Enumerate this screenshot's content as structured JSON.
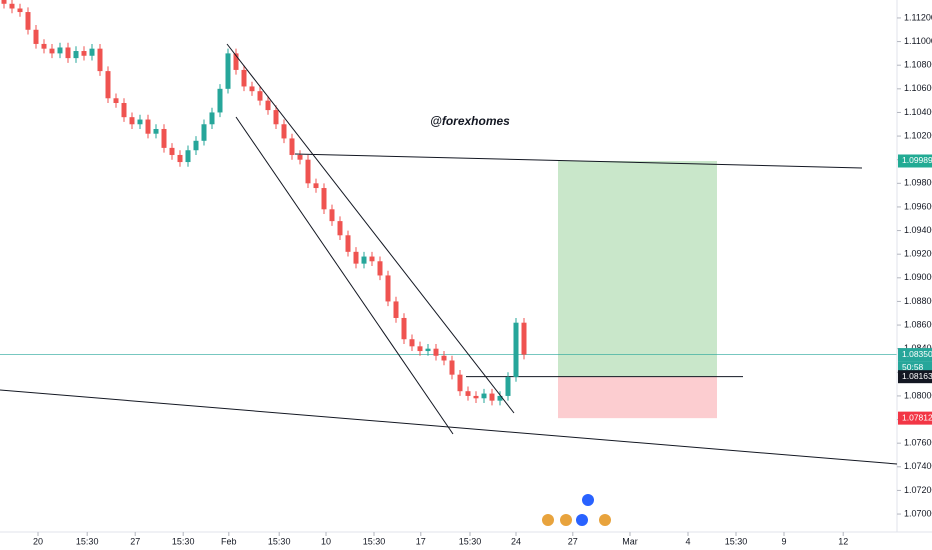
{
  "chart_data": {
    "type": "candlestick",
    "watermark": "@forexhomes",
    "ylim": [
      1.06848,
      1.11352
    ],
    "xlim": [
      0,
      112
    ],
    "yticks": [
      {
        "value": 1.07,
        "label": "1.07000"
      },
      {
        "value": 1.072,
        "label": "1.07200"
      },
      {
        "value": 1.074,
        "label": "1.07400"
      },
      {
        "value": 1.076,
        "label": "1.07600"
      },
      {
        "value": 1.078,
        "label": "1.07800"
      },
      {
        "value": 1.08,
        "label": "1.08000"
      },
      {
        "value": 1.082,
        "label": "1.08200"
      },
      {
        "value": 1.084,
        "label": "1.08400"
      },
      {
        "value": 1.086,
        "label": "1.08600"
      },
      {
        "value": 1.088,
        "label": "1.08800"
      },
      {
        "value": 1.09,
        "label": "1.09000"
      },
      {
        "value": 1.092,
        "label": "1.09200"
      },
      {
        "value": 1.094,
        "label": "1.09400"
      },
      {
        "value": 1.096,
        "label": "1.09600"
      },
      {
        "value": 1.098,
        "label": "1.09800"
      },
      {
        "value": 1.1,
        "label": "1.10000"
      },
      {
        "value": 1.102,
        "label": "1.10200"
      },
      {
        "value": 1.104,
        "label": "1.10400"
      },
      {
        "value": 1.106,
        "label": "1.10600"
      },
      {
        "value": 1.108,
        "label": "1.10800"
      },
      {
        "value": 1.11,
        "label": "1.11000"
      },
      {
        "value": 1.112,
        "label": "1.11200"
      }
    ],
    "xticks": [
      {
        "value": 4.75,
        "label": "20"
      },
      {
        "value": 10.9,
        "label": "15:30"
      },
      {
        "value": 16.9,
        "label": "27"
      },
      {
        "value": 22.9,
        "label": "15:30"
      },
      {
        "value": 28.6,
        "label": "Feb"
      },
      {
        "value": 34.9,
        "label": "15:30"
      },
      {
        "value": 40.75,
        "label": "10"
      },
      {
        "value": 46.75,
        "label": "15:30"
      },
      {
        "value": 52.6,
        "label": "17"
      },
      {
        "value": 58.75,
        "label": "15:30"
      },
      {
        "value": 64.5,
        "label": "24"
      },
      {
        "value": 71.6,
        "label": "27"
      },
      {
        "value": 78.75,
        "label": "Mar"
      },
      {
        "value": 86,
        "label": "4"
      },
      {
        "value": 92,
        "label": "15:30"
      },
      {
        "value": 98,
        "label": "9"
      },
      {
        "value": 105.4,
        "label": "12"
      }
    ],
    "up_color": "#26a69a",
    "down_color": "#ef5350",
    "open": [
      1.1136,
      1.1132,
      1.1128,
      1.1125,
      1.111,
      1.1098,
      1.1094,
      1.109,
      1.1095,
      1.1086,
      1.1092,
      1.1088,
      1.1094,
      1.1075,
      1.1052,
      1.1048,
      1.1036,
      1.103,
      1.1034,
      1.1022,
      1.1026,
      1.101,
      1.1004,
      1.0998,
      1.1008,
      1.1016,
      1.103,
      1.104,
      1.106,
      1.109,
      1.1076,
      1.1062,
      1.1058,
      1.105,
      1.1042,
      1.103,
      1.1018,
      1.1004,
      1.1,
      1.098,
      1.0976,
      1.0958,
      1.0948,
      1.0936,
      1.0922,
      1.0912,
      1.0918,
      1.0914,
      1.0902,
      1.088,
      1.0866,
      1.0848,
      1.0842,
      1.0838,
      1.084,
      1.0834,
      1.083,
      1.0818,
      1.0804,
      1.08,
      1.0798,
      1.0802,
      1.0796,
      1.08,
      1.0816,
      1.0862
    ],
    "high": [
      1.114,
      1.1136,
      1.1132,
      1.1129,
      1.1114,
      1.1102,
      1.1098,
      1.1099,
      1.1099,
      1.1096,
      1.1096,
      1.1098,
      1.1098,
      1.1079,
      1.1056,
      1.1052,
      1.104,
      1.1038,
      1.1038,
      1.103,
      1.103,
      1.1014,
      1.1008,
      1.1012,
      1.102,
      1.1034,
      1.1044,
      1.1064,
      1.1094,
      1.1094,
      1.108,
      1.1066,
      1.1062,
      1.1054,
      1.1046,
      1.1034,
      1.1022,
      1.1008,
      1.1004,
      1.0984,
      1.098,
      1.0962,
      1.0952,
      1.094,
      1.0926,
      1.0922,
      1.0922,
      1.0918,
      1.0906,
      1.0884,
      1.087,
      1.0852,
      1.0846,
      1.0844,
      1.0844,
      1.0838,
      1.0834,
      1.0822,
      1.0808,
      1.0804,
      1.0806,
      1.0806,
      1.0804,
      1.082,
      1.0866,
      1.0866
    ],
    "low": [
      1.1128,
      1.1124,
      1.1121,
      1.1106,
      1.1094,
      1.109,
      1.1086,
      1.1086,
      1.1082,
      1.1082,
      1.1084,
      1.1084,
      1.1071,
      1.1048,
      1.1044,
      1.1032,
      1.1026,
      1.1026,
      1.1018,
      1.1018,
      1.1006,
      1.1,
      1.0994,
      1.0994,
      1.1004,
      1.1012,
      1.1026,
      1.1036,
      1.1056,
      1.1072,
      1.1058,
      1.1054,
      1.1046,
      1.1038,
      1.1026,
      1.1014,
      1.1,
      1.0996,
      1.0976,
      1.0972,
      1.0954,
      1.0944,
      1.0932,
      1.0918,
      1.0908,
      1.0908,
      1.091,
      1.0898,
      1.0876,
      1.0862,
      1.0844,
      1.0838,
      1.0834,
      1.0834,
      1.083,
      1.0826,
      1.0814,
      1.08,
      1.0796,
      1.0794,
      1.0794,
      1.0792,
      1.0792,
      1.0796,
      1.0812,
      1.0831
    ],
    "close": [
      1.1132,
      1.1128,
      1.1125,
      1.111,
      1.1098,
      1.1094,
      1.109,
      1.1095,
      1.1086,
      1.1092,
      1.1088,
      1.1094,
      1.1075,
      1.1052,
      1.1048,
      1.1036,
      1.103,
      1.1034,
      1.1022,
      1.1026,
      1.101,
      1.1004,
      1.0998,
      1.1008,
      1.1016,
      1.103,
      1.104,
      1.106,
      1.109,
      1.1076,
      1.1062,
      1.1058,
      1.105,
      1.1042,
      1.103,
      1.1018,
      1.1004,
      1.1,
      1.098,
      1.0976,
      1.0958,
      1.0948,
      1.0936,
      1.0922,
      1.0912,
      1.0918,
      1.0914,
      1.0902,
      1.088,
      1.0866,
      1.0848,
      1.0842,
      1.0838,
      1.084,
      1.0834,
      1.083,
      1.0818,
      1.0804,
      1.08,
      1.0798,
      1.0802,
      1.0796,
      1.08,
      1.0816,
      1.0862,
      1.0835
    ],
    "target": {
      "value": 1.09989,
      "label": "1.09989",
      "color": "#22ab94"
    },
    "current": {
      "value": 1.0835,
      "label": "1.08350",
      "color": "#26a69a",
      "countdown": "50:58"
    },
    "entry": {
      "value": 1.08163,
      "label": "1.08163",
      "color": "#131722"
    },
    "stop": {
      "value": 1.07812,
      "label": "1.07812",
      "color": "#f23645"
    }
  }
}
